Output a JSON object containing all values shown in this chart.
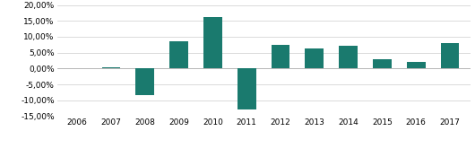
{
  "years": [
    2006,
    2007,
    2008,
    2009,
    2010,
    2011,
    2012,
    2013,
    2014,
    2015,
    2016,
    2017
  ],
  "values": [
    0.0,
    0.005,
    -0.085,
    0.085,
    0.162,
    -0.13,
    0.075,
    0.062,
    0.072,
    0.03,
    0.022,
    0.08
  ],
  "bar_color": "#1a7a6e",
  "ylim_min": -0.15,
  "ylim_max": 0.2,
  "yticks": [
    -0.15,
    -0.1,
    -0.05,
    0.0,
    0.05,
    0.1,
    0.15,
    0.2
  ],
  "ytick_labels": [
    "-15,00%",
    "-10,00%",
    "-5,00%",
    "0,00%",
    "5,00%",
    "10,00%",
    "15,00%",
    "20,00%"
  ],
  "background_color": "#ffffff",
  "grid_color": "#cccccc",
  "bar_width": 0.55
}
